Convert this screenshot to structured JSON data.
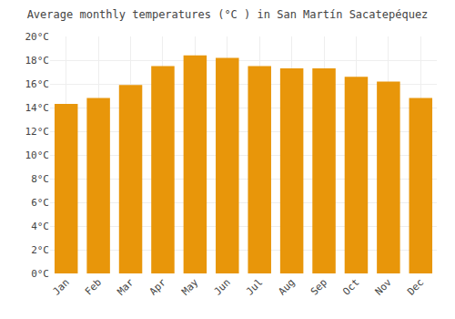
{
  "chart_data": {
    "type": "bar",
    "title": "Average monthly temperatures (°C ) in San Martín Sacatepéquez",
    "categories": [
      "Jan",
      "Feb",
      "Mar",
      "Apr",
      "May",
      "Jun",
      "Jul",
      "Aug",
      "Sep",
      "Oct",
      "Nov",
      "Dec"
    ],
    "values": [
      14.3,
      14.8,
      15.9,
      17.5,
      18.4,
      18.2,
      17.5,
      17.3,
      17.3,
      16.6,
      16.2,
      14.8
    ],
    "color": "#E8960A",
    "ylim": [
      0,
      20
    ],
    "yticks": [
      {
        "value": 0,
        "label": "0°C"
      },
      {
        "value": 2,
        "label": "2°C"
      },
      {
        "value": 4,
        "label": "4°C"
      },
      {
        "value": 6,
        "label": "6°C"
      },
      {
        "value": 8,
        "label": "8°C"
      },
      {
        "value": 10,
        "label": "10°C"
      },
      {
        "value": 12,
        "label": "12°C"
      },
      {
        "value": 14,
        "label": "14°C"
      },
      {
        "value": 16,
        "label": "16°C"
      },
      {
        "value": 18,
        "label": "18°C"
      },
      {
        "value": 20,
        "label": "20°C"
      }
    ],
    "grid": true
  }
}
